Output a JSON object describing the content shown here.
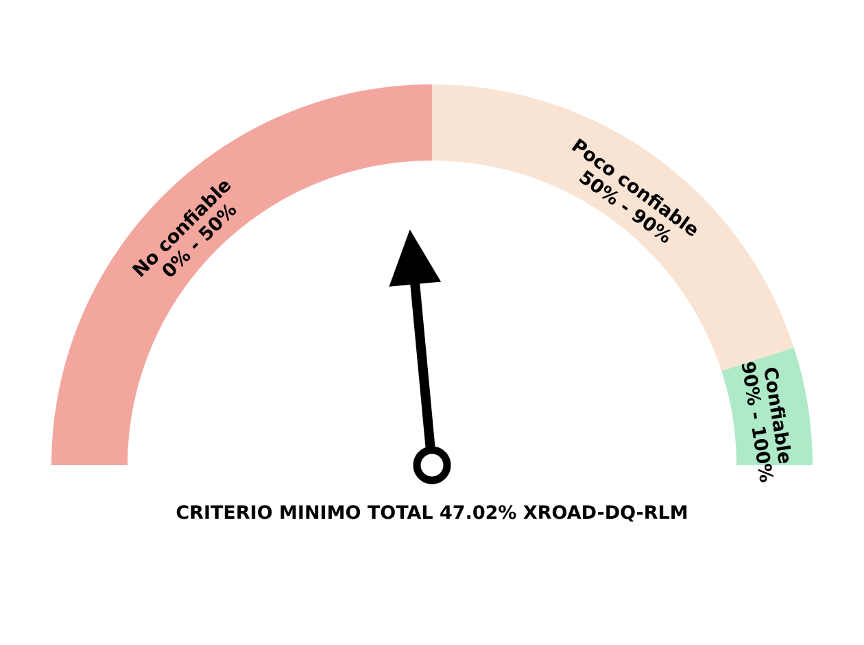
{
  "chart_data": {
    "type": "gauge",
    "scale_min": 0,
    "scale_max": 100,
    "value": 47.02,
    "zones": [
      {
        "name": "No confiable",
        "range_label": "0% - 50%",
        "from": 0,
        "to": 50,
        "color": "#f2a69e"
      },
      {
        "name": "Poco confiable",
        "range_label": "50% - 90%",
        "from": 50,
        "to": 90,
        "color": "#f9e4d4"
      },
      {
        "name": "Confiable",
        "range_label": "90% - 100%",
        "from": 90,
        "to": 100,
        "color": "#aeeac7"
      }
    ],
    "caption": "CRITERIO MINIMO TOTAL 47.02% XROAD-DQ-RLM",
    "needle_color": "#000000"
  }
}
